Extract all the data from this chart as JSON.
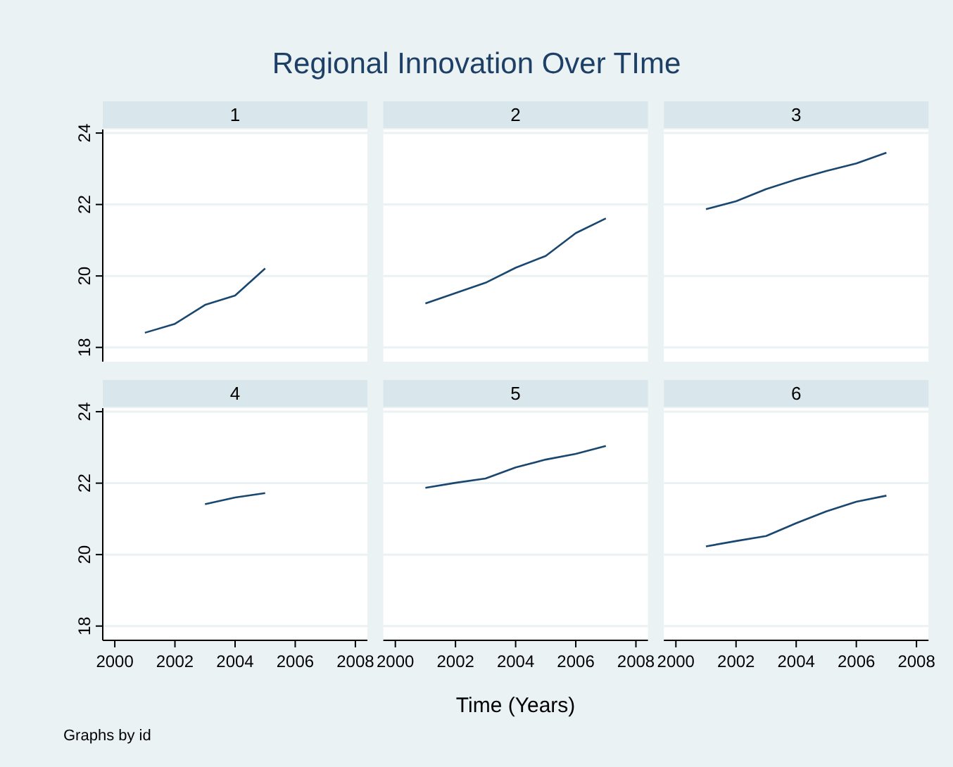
{
  "chart_data": [
    {
      "type": "line",
      "title": "Regional Innovation Over TIme",
      "subtitle": "1",
      "x": [
        2001,
        2002,
        2003,
        2004,
        2005
      ],
      "series": [
        {
          "color": "#1a476f",
          "values": [
            18.41,
            18.66,
            19.19,
            19.45,
            20.21
          ]
        }
      ],
      "xlim": [
        1999.6,
        2008.4
      ],
      "ylim": [
        17.6,
        24.1
      ],
      "yticks": [
        18,
        20,
        22,
        24
      ],
      "grid": "y",
      "tick_labels": "y"
    },
    {
      "type": "line",
      "subtitle": "2",
      "x": [
        2001,
        2002,
        2003,
        2004,
        2005,
        2006,
        2007
      ],
      "series": [
        {
          "color": "#1a476f",
          "values": [
            19.23,
            19.52,
            19.81,
            20.23,
            20.56,
            21.2,
            21.61
          ]
        }
      ],
      "xlim": [
        1999.6,
        2008.4
      ],
      "ylim": [
        17.6,
        24.1
      ],
      "yticks": [
        18,
        20,
        22,
        24
      ],
      "grid": "y",
      "tick_labels": false
    },
    {
      "type": "line",
      "subtitle": "3",
      "x": [
        2001,
        2002,
        2003,
        2004,
        2005,
        2006,
        2007
      ],
      "series": [
        {
          "color": "#1a476f",
          "values": [
            21.87,
            22.09,
            22.43,
            22.7,
            22.94,
            23.15,
            23.45
          ]
        }
      ],
      "xlim": [
        1999.6,
        2008.4
      ],
      "ylim": [
        17.6,
        24.1
      ],
      "yticks": [
        18,
        20,
        22,
        24
      ],
      "grid": "y",
      "tick_labels": false
    },
    {
      "type": "line",
      "subtitle": "4",
      "annotations": [
        "Graphs by id"
      ],
      "x": [
        2003,
        2004,
        2005
      ],
      "series": [
        {
          "color": "#1a476f",
          "values": [
            21.41,
            21.6,
            21.72
          ]
        }
      ],
      "xlim": [
        1999.6,
        2008.4
      ],
      "ylim": [
        17.6,
        24.1
      ],
      "xticks": [
        2000,
        2002,
        2004,
        2006,
        2008
      ],
      "yticks": [
        18,
        20,
        22,
        24
      ],
      "grid": "y"
    },
    {
      "type": "line",
      "subtitle": "5",
      "xlabel": "Time (Years)",
      "x": [
        2001,
        2002,
        2003,
        2004,
        2005,
        2006,
        2007
      ],
      "series": [
        {
          "color": "#1a476f",
          "values": [
            21.87,
            22.01,
            22.13,
            22.44,
            22.66,
            22.82,
            23.04
          ]
        }
      ],
      "xlim": [
        1999.6,
        2008.4
      ],
      "ylim": [
        17.6,
        24.1
      ],
      "xticks": [
        2000,
        2002,
        2004,
        2006,
        2008
      ],
      "yticks": [
        18,
        20,
        22,
        24
      ],
      "grid": "y",
      "tick_labels": "x"
    },
    {
      "type": "line",
      "subtitle": "6",
      "x": [
        2001,
        2002,
        2003,
        2004,
        2005,
        2006,
        2007
      ],
      "series": [
        {
          "color": "#1a476f",
          "values": [
            20.23,
            20.38,
            20.52,
            20.88,
            21.21,
            21.48,
            21.65
          ]
        }
      ],
      "xlim": [
        1999.6,
        2008.4
      ],
      "ylim": [
        17.6,
        24.1
      ],
      "xticks": [
        2000,
        2002,
        2004,
        2006,
        2008
      ],
      "yticks": [
        18,
        20,
        22,
        24
      ],
      "grid": "y",
      "tick_labels": "x"
    }
  ]
}
